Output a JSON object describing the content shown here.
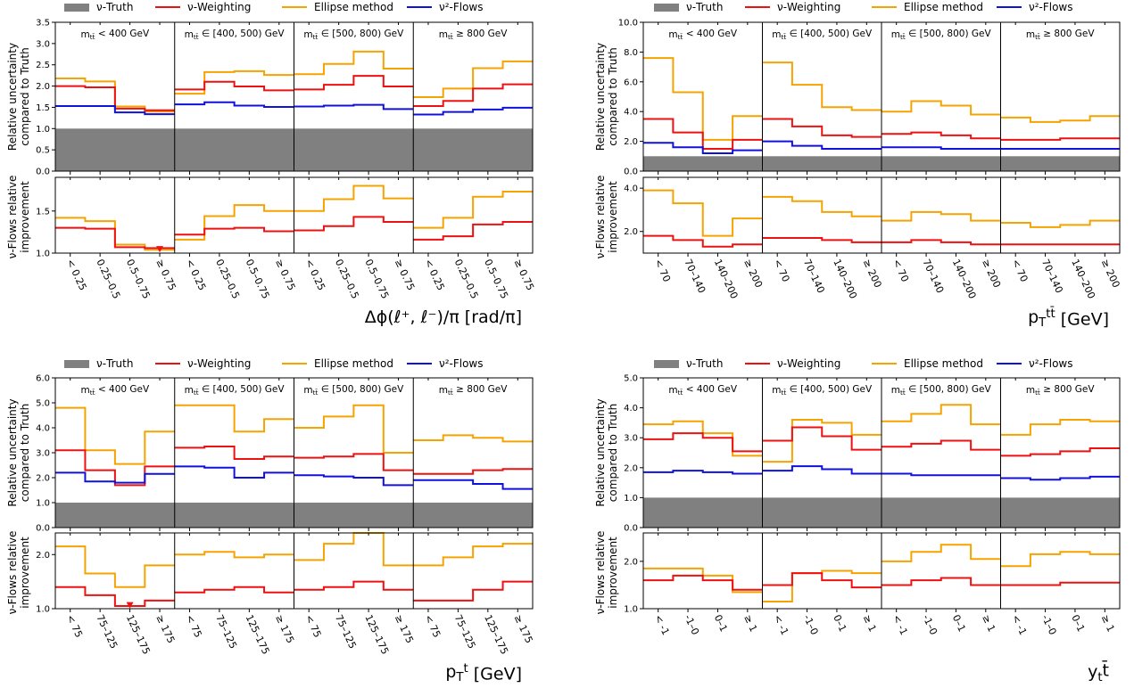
{
  "legend": {
    "items": [
      {
        "label": "ν-Truth",
        "color": "#808080",
        "kind": "box"
      },
      {
        "label": "ν-Weighting",
        "color": "#ee1111",
        "kind": "line"
      },
      {
        "label": "Ellipse method",
        "color": "#f5a300",
        "kind": "line"
      },
      {
        "label": "ν²-Flows",
        "color": "#1111dd",
        "kind": "line"
      }
    ]
  },
  "colors": {
    "truth": "#808080",
    "weighting": "#ee1111",
    "ellipse": "#f5a300",
    "flows": "#1111dd"
  },
  "mass_bins": [
    "m_tt̄ < 400 GeV",
    "m_tt̄ ∈ [400, 500) GeV",
    "m_tt̄ ∈ [500, 800) GeV",
    "m_tt̄ ≥ 800 GeV"
  ],
  "top_ylabel": [
    "Relative uncertainty",
    "compared to Truth"
  ],
  "bottom_ylabel": [
    "ν-Flows relative",
    "improvement"
  ],
  "chart_data": [
    {
      "type": "line",
      "step": true,
      "xlabel": "Δϕ(ℓ⁺, ℓ⁻)/π [rad/π]",
      "categories": [
        "< 0.25",
        "0.25–0.5",
        "0.5–0.75",
        "≥ 0.75"
      ],
      "top": {
        "ylim": [
          0,
          3.5
        ],
        "yticks": [
          0,
          0.5,
          1.0,
          1.5,
          2.0,
          2.5,
          3.0,
          3.5
        ],
        "ytick_labels": [
          "0.0",
          "0.5",
          "1.0",
          "1.5",
          "2.0",
          "2.5",
          "3.0",
          "3.5"
        ],
        "truth": 1.0,
        "series": [
          {
            "key": "ellipse",
            "values": [
              [
                2.18,
                2.11,
                1.52,
                1.4
              ],
              [
                1.82,
                2.33,
                2.35,
                2.26
              ],
              [
                2.28,
                2.52,
                2.81,
                2.41
              ],
              [
                1.74,
                1.94,
                2.42,
                2.58
              ]
            ]
          },
          {
            "key": "weighting",
            "values": [
              [
                2.0,
                1.97,
                1.47,
                1.43
              ],
              [
                1.92,
                2.1,
                1.99,
                1.9
              ],
              [
                1.92,
                2.03,
                2.24,
                1.99
              ],
              [
                1.53,
                1.65,
                1.94,
                2.04
              ]
            ]
          },
          {
            "key": "flows",
            "values": [
              [
                1.53,
                1.53,
                1.38,
                1.34
              ],
              [
                1.57,
                1.62,
                1.54,
                1.51
              ],
              [
                1.52,
                1.54,
                1.56,
                1.46
              ],
              [
                1.33,
                1.39,
                1.45,
                1.49
              ]
            ]
          }
        ]
      },
      "bottom": {
        "ylim": [
          1.0,
          1.9
        ],
        "yticks": [
          1.0,
          1.5
        ],
        "ytick_labels": [
          "1.0",
          "1.5"
        ],
        "series": [
          {
            "key": "ellipse",
            "values": [
              [
                1.42,
                1.38,
                1.1,
                1.04
              ],
              [
                1.16,
                1.44,
                1.57,
                1.5
              ],
              [
                1.5,
                1.64,
                1.8,
                1.65
              ],
              [
                1.3,
                1.42,
                1.67,
                1.73
              ]
            ]
          },
          {
            "key": "weighting",
            "values": [
              [
                1.3,
                1.29,
                1.07,
                1.06
              ],
              [
                1.22,
                1.29,
                1.3,
                1.26
              ],
              [
                1.27,
                1.32,
                1.43,
                1.37
              ],
              [
                1.16,
                1.2,
                1.34,
                1.37
              ]
            ]
          }
        ],
        "markers": [
          {
            "panel": 0,
            "bin": 3,
            "value": 1.03,
            "color": "#ee1111",
            "shape": "down-triangle"
          }
        ]
      }
    },
    {
      "type": "line",
      "step": true,
      "xlabel": "p_T^{tt̄} [GeV]",
      "categories": [
        "< 70",
        "70–140",
        "140–200",
        "≥ 200"
      ],
      "top": {
        "ylim": [
          0,
          10.0
        ],
        "yticks": [
          0,
          2.0,
          4.0,
          6.0,
          8.0,
          10.0
        ],
        "ytick_labels": [
          "0.0",
          "2.0",
          "4.0",
          "6.0",
          "8.0",
          "10.0"
        ],
        "truth": 1.0,
        "series": [
          {
            "key": "ellipse",
            "values": [
              [
                7.6,
                5.3,
                2.1,
                3.7
              ],
              [
                7.3,
                5.8,
                4.3,
                4.1
              ],
              [
                4.0,
                4.7,
                4.4,
                3.8
              ],
              [
                3.6,
                3.3,
                3.4,
                3.7
              ]
            ]
          },
          {
            "key": "weighting",
            "values": [
              [
                3.5,
                2.6,
                1.5,
                2.1
              ],
              [
                3.5,
                3.0,
                2.4,
                2.3
              ],
              [
                2.5,
                2.6,
                2.4,
                2.2
              ],
              [
                2.1,
                2.1,
                2.2,
                2.2
              ]
            ]
          },
          {
            "key": "flows",
            "values": [
              [
                1.9,
                1.6,
                1.2,
                1.4
              ],
              [
                2.0,
                1.7,
                1.5,
                1.5
              ],
              [
                1.6,
                1.6,
                1.5,
                1.5
              ],
              [
                1.5,
                1.5,
                1.5,
                1.5
              ]
            ]
          }
        ]
      },
      "bottom": {
        "ylim": [
          1.0,
          4.5
        ],
        "yticks": [
          2.0,
          4.0
        ],
        "ytick_labels": [
          "2.0",
          "4.0"
        ],
        "series": [
          {
            "key": "ellipse",
            "values": [
              [
                3.9,
                3.3,
                1.8,
                2.6
              ],
              [
                3.6,
                3.4,
                2.9,
                2.7
              ],
              [
                2.5,
                2.9,
                2.8,
                2.5
              ],
              [
                2.4,
                2.2,
                2.3,
                2.5
              ]
            ]
          },
          {
            "key": "weighting",
            "values": [
              [
                1.8,
                1.6,
                1.3,
                1.4
              ],
              [
                1.7,
                1.7,
                1.6,
                1.5
              ],
              [
                1.5,
                1.6,
                1.5,
                1.4
              ],
              [
                1.4,
                1.4,
                1.4,
                1.4
              ]
            ]
          }
        ],
        "markers": []
      }
    },
    {
      "type": "line",
      "step": true,
      "xlabel": "p_T^t [GeV]",
      "categories": [
        "< 75",
        "75–125",
        "125–175",
        "≥ 175"
      ],
      "top": {
        "ylim": [
          0,
          6.0
        ],
        "yticks": [
          0,
          1.0,
          2.0,
          3.0,
          4.0,
          5.0,
          6.0
        ],
        "ytick_labels": [
          "0.0",
          "1.0",
          "2.0",
          "3.0",
          "4.0",
          "5.0",
          "6.0"
        ],
        "truth": 1.0,
        "series": [
          {
            "key": "ellipse",
            "values": [
              [
                4.8,
                3.1,
                2.55,
                3.85
              ],
              [
                4.9,
                4.9,
                3.85,
                4.35
              ],
              [
                4.0,
                4.45,
                4.9,
                3.0
              ],
              [
                3.5,
                3.7,
                3.6,
                3.45
              ]
            ]
          },
          {
            "key": "weighting",
            "values": [
              [
                3.1,
                2.3,
                1.7,
                2.45
              ],
              [
                3.2,
                3.25,
                2.75,
                2.85
              ],
              [
                2.8,
                2.85,
                2.95,
                2.3
              ],
              [
                2.15,
                2.15,
                2.3,
                2.35
              ]
            ]
          },
          {
            "key": "flows",
            "values": [
              [
                2.2,
                1.85,
                1.8,
                2.15
              ],
              [
                2.45,
                2.4,
                2.0,
                2.2
              ],
              [
                2.1,
                2.05,
                2.0,
                1.7
              ],
              [
                1.9,
                1.9,
                1.75,
                1.55
              ]
            ]
          }
        ]
      },
      "bottom": {
        "ylim": [
          1.0,
          2.4
        ],
        "yticks": [
          1.0,
          2.0
        ],
        "ytick_labels": [
          "1.0",
          "2.0"
        ],
        "series": [
          {
            "key": "ellipse",
            "values": [
              [
                2.15,
                1.65,
                1.4,
                1.8
              ],
              [
                2.0,
                2.05,
                1.95,
                2.0
              ],
              [
                1.9,
                2.2,
                2.45,
                1.8
              ],
              [
                1.8,
                1.95,
                2.15,
                2.2
              ]
            ]
          },
          {
            "key": "weighting",
            "values": [
              [
                1.4,
                1.25,
                1.05,
                1.15
              ],
              [
                1.3,
                1.35,
                1.4,
                1.3
              ],
              [
                1.35,
                1.4,
                1.5,
                1.35
              ],
              [
                1.15,
                1.15,
                1.35,
                1.5
              ]
            ]
          }
        ],
        "markers": [
          {
            "panel": 0,
            "bin": 2,
            "value": 1.04,
            "color": "#ee1111",
            "shape": "down-triangle"
          }
        ]
      }
    },
    {
      "type": "line",
      "step": true,
      "xlabel": "y_tt̄",
      "categories": [
        "< -1",
        "-1–0",
        "0–1",
        "≥ 1"
      ],
      "top": {
        "ylim": [
          0,
          5.0
        ],
        "yticks": [
          0,
          1.0,
          2.0,
          3.0,
          4.0,
          5.0
        ],
        "ytick_labels": [
          "0.0",
          "1.0",
          "2.0",
          "3.0",
          "4.0",
          "5.0"
        ],
        "truth": 1.0,
        "series": [
          {
            "key": "ellipse",
            "values": [
              [
                3.45,
                3.55,
                3.15,
                2.4
              ],
              [
                2.2,
                3.6,
                3.5,
                3.1
              ],
              [
                3.55,
                3.8,
                4.1,
                3.45
              ],
              [
                3.1,
                3.45,
                3.6,
                3.55
              ]
            ]
          },
          {
            "key": "weighting",
            "values": [
              [
                2.95,
                3.15,
                3.0,
                2.55
              ],
              [
                2.9,
                3.35,
                3.05,
                2.6
              ],
              [
                2.7,
                2.8,
                2.9,
                2.6
              ],
              [
                2.4,
                2.45,
                2.55,
                2.65
              ]
            ]
          },
          {
            "key": "flows",
            "values": [
              [
                1.85,
                1.9,
                1.85,
                1.8
              ],
              [
                1.9,
                2.05,
                1.95,
                1.8
              ],
              [
                1.8,
                1.75,
                1.75,
                1.75
              ],
              [
                1.65,
                1.6,
                1.65,
                1.7
              ]
            ]
          }
        ]
      },
      "bottom": {
        "ylim": [
          1.0,
          2.6
        ],
        "yticks": [
          1.0,
          2.0
        ],
        "ytick_labels": [
          "1.0",
          "2.0"
        ],
        "series": [
          {
            "key": "ellipse",
            "values": [
              [
                1.85,
                1.85,
                1.7,
                1.35
              ],
              [
                1.15,
                1.75,
                1.8,
                1.75
              ],
              [
                2.0,
                2.2,
                2.35,
                2.05
              ],
              [
                1.9,
                2.15,
                2.2,
                2.15
              ]
            ]
          },
          {
            "key": "weighting",
            "values": [
              [
                1.6,
                1.7,
                1.6,
                1.4
              ],
              [
                1.5,
                1.75,
                1.6,
                1.45
              ],
              [
                1.5,
                1.6,
                1.65,
                1.5
              ],
              [
                1.5,
                1.5,
                1.55,
                1.55
              ]
            ]
          }
        ],
        "markers": []
      }
    }
  ]
}
